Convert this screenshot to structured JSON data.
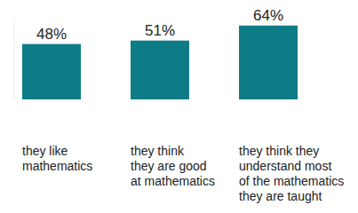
{
  "chart_data": {
    "type": "bar",
    "categories": [
      "they like\nmathematics",
      "they think\nthey are good\nat mathematics",
      "they think they\nunderstand most\nof the mathematics\nthey are taught"
    ],
    "values": [
      48,
      51,
      64
    ],
    "value_labels": [
      "48%",
      "51%",
      "64%"
    ],
    "color": "#0e7c86",
    "ylim": [
      0,
      70
    ],
    "yticks": [],
    "grid": false,
    "data_labels": true,
    "tick_labels": "x"
  }
}
